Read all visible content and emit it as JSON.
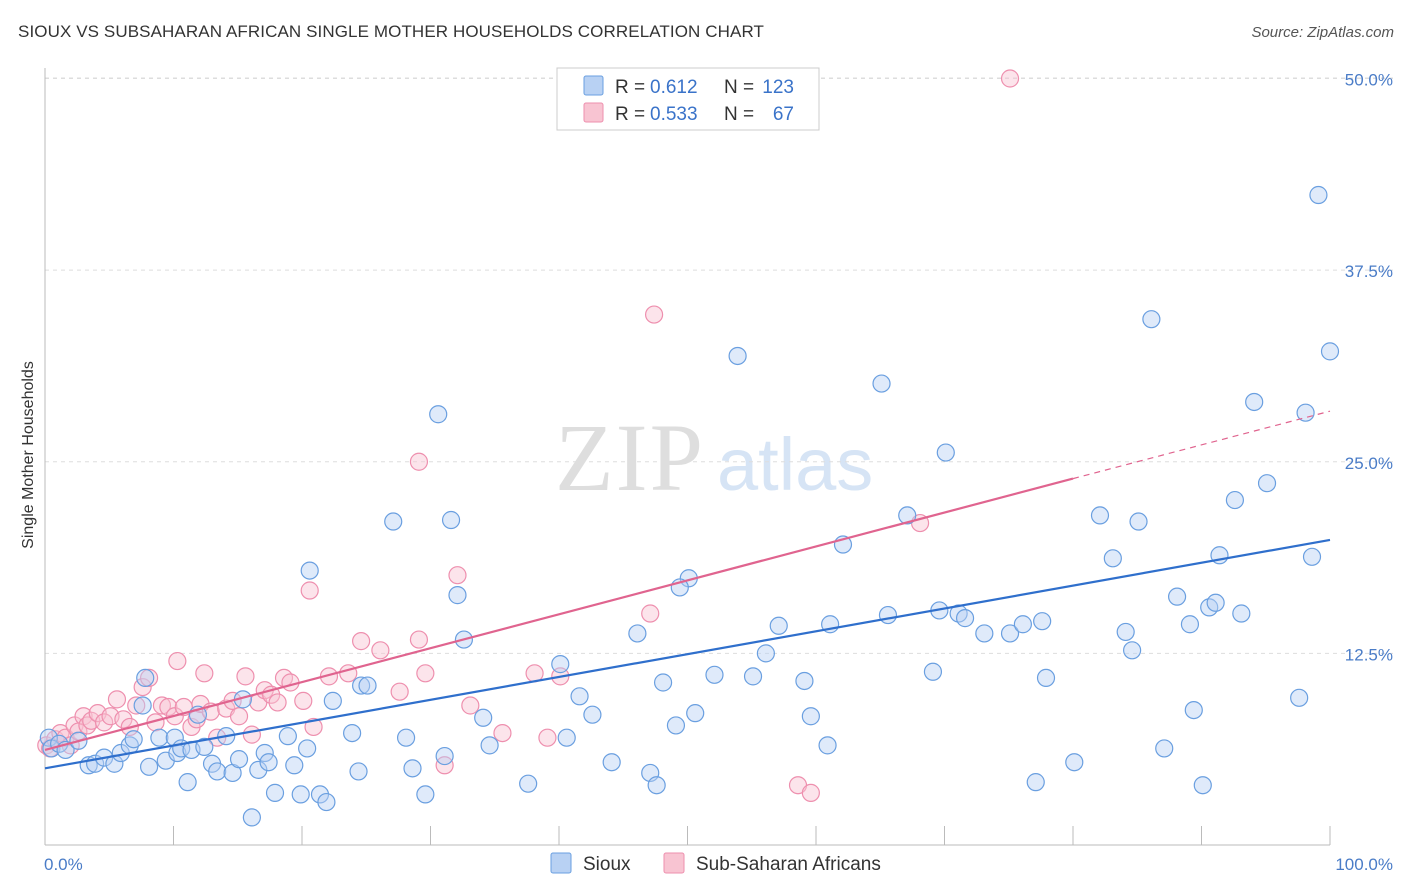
{
  "header": {
    "title": "SIOUX VS SUBSAHARAN AFRICAN SINGLE MOTHER HOUSEHOLDS CORRELATION CHART",
    "source": "Source: ZipAtlas.com"
  },
  "watermark": {
    "zip": "ZIP",
    "atlas": "atlas"
  },
  "colors": {
    "sioux_fill": "#b8d1f3",
    "sioux_stroke": "#6a9fe0",
    "sioux_line": "#2f6fcc",
    "ssa_fill": "#f8c4d2",
    "ssa_stroke": "#ee8fae",
    "ssa_line": "#e0648f",
    "tick_text": "#4a7cc7",
    "grid": "#dddddd"
  },
  "legend": {
    "rows": [
      {
        "r_label": "R =",
        "r_value": "0.612",
        "n_label": "N =",
        "n_value": "123"
      },
      {
        "r_label": "R =",
        "r_value": "0.533",
        "n_label": "N =",
        "n_value": "67"
      }
    ]
  },
  "chart_data": {
    "type": "scatter",
    "title": "SIOUX VS SUBSAHARAN AFRICAN SINGLE MOTHER HOUSEHOLDS CORRELATION CHART",
    "xlabel": "",
    "ylabel": "Single Mother Households",
    "xlim": [
      0,
      100
    ],
    "ylim": [
      0,
      52
    ],
    "x_tick_labels": [
      "0.0%",
      "100.0%"
    ],
    "y_ticks": [
      12.5,
      25.0,
      37.5,
      50.0
    ],
    "y_tick_labels": [
      "12.5%",
      "25.0%",
      "37.5%",
      "50.0%"
    ],
    "grid": "horizontal dashed",
    "legend_position": "top-center",
    "series": [
      {
        "name": "Sioux",
        "r": 0.612,
        "n": 123,
        "trend": {
          "x": [
            0,
            100
          ],
          "y": [
            5.0,
            19.9
          ]
        },
        "points": [
          [
            0.3,
            7.0
          ],
          [
            0.5,
            6.3
          ],
          [
            1.1,
            6.6
          ],
          [
            1.6,
            6.2
          ],
          [
            2.6,
            6.8
          ],
          [
            3.4,
            5.2
          ],
          [
            3.9,
            5.3
          ],
          [
            4.6,
            5.7
          ],
          [
            5.4,
            5.3
          ],
          [
            5.9,
            6.0
          ],
          [
            6.6,
            6.5
          ],
          [
            6.9,
            6.9
          ],
          [
            7.6,
            9.1
          ],
          [
            7.8,
            10.9
          ],
          [
            8.1,
            5.1
          ],
          [
            8.9,
            7.0
          ],
          [
            9.4,
            5.5
          ],
          [
            10.1,
            7.0
          ],
          [
            10.3,
            6.0
          ],
          [
            10.6,
            6.3
          ],
          [
            11.1,
            4.1
          ],
          [
            11.4,
            6.2
          ],
          [
            11.9,
            8.5
          ],
          [
            12.4,
            6.4
          ],
          [
            13.0,
            5.3
          ],
          [
            13.4,
            4.8
          ],
          [
            14.1,
            7.1
          ],
          [
            14.6,
            4.7
          ],
          [
            15.1,
            5.6
          ],
          [
            15.4,
            9.5
          ],
          [
            16.1,
            1.8
          ],
          [
            16.6,
            4.9
          ],
          [
            17.1,
            6.0
          ],
          [
            17.4,
            5.4
          ],
          [
            17.9,
            3.4
          ],
          [
            18.9,
            7.1
          ],
          [
            19.4,
            5.2
          ],
          [
            19.9,
            3.3
          ],
          [
            20.4,
            6.3
          ],
          [
            20.6,
            17.9
          ],
          [
            21.4,
            3.3
          ],
          [
            21.9,
            2.8
          ],
          [
            22.4,
            9.4
          ],
          [
            23.9,
            7.3
          ],
          [
            24.4,
            4.8
          ],
          [
            24.6,
            10.4
          ],
          [
            25.1,
            10.4
          ],
          [
            27.1,
            21.1
          ],
          [
            28.1,
            7.0
          ],
          [
            28.6,
            5.0
          ],
          [
            29.6,
            3.3
          ],
          [
            30.6,
            28.1
          ],
          [
            31.1,
            5.8
          ],
          [
            31.6,
            21.2
          ],
          [
            32.1,
            16.3
          ],
          [
            32.6,
            13.4
          ],
          [
            34.1,
            8.3
          ],
          [
            40.1,
            11.8
          ],
          [
            40.6,
            7.0
          ],
          [
            41.6,
            9.7
          ],
          [
            42.6,
            8.5
          ],
          [
            44.1,
            5.4
          ],
          [
            46.1,
            13.8
          ],
          [
            47.1,
            4.7
          ],
          [
            47.6,
            3.9
          ],
          [
            48.1,
            10.6
          ],
          [
            49.1,
            7.8
          ],
          [
            50.1,
            17.4
          ],
          [
            50.6,
            8.6
          ],
          [
            52.1,
            11.1
          ],
          [
            53.9,
            31.9
          ],
          [
            55.1,
            11.0
          ],
          [
            56.1,
            12.5
          ],
          [
            57.1,
            14.3
          ],
          [
            59.1,
            10.7
          ],
          [
            59.6,
            8.4
          ],
          [
            60.9,
            6.5
          ],
          [
            61.1,
            14.4
          ],
          [
            62.1,
            19.6
          ],
          [
            65.1,
            30.1
          ],
          [
            65.6,
            15.0
          ],
          [
            67.1,
            21.5
          ],
          [
            69.1,
            11.3
          ],
          [
            69.6,
            15.3
          ],
          [
            70.1,
            25.6
          ],
          [
            71.1,
            15.1
          ],
          [
            71.6,
            14.8
          ],
          [
            73.1,
            13.8
          ],
          [
            75.1,
            13.8
          ],
          [
            76.1,
            14.4
          ],
          [
            77.1,
            4.1
          ],
          [
            77.6,
            14.6
          ],
          [
            77.9,
            10.9
          ],
          [
            80.1,
            5.4
          ],
          [
            82.1,
            21.5
          ],
          [
            83.1,
            18.7
          ],
          [
            84.1,
            13.9
          ],
          [
            84.6,
            12.7
          ],
          [
            85.1,
            21.1
          ],
          [
            86.1,
            34.3
          ],
          [
            87.1,
            6.3
          ],
          [
            88.1,
            16.2
          ],
          [
            89.1,
            14.4
          ],
          [
            89.4,
            8.8
          ],
          [
            90.1,
            3.9
          ],
          [
            90.6,
            15.5
          ],
          [
            91.1,
            15.8
          ],
          [
            91.4,
            18.9
          ],
          [
            92.6,
            22.5
          ],
          [
            93.1,
            15.1
          ],
          [
            94.1,
            28.9
          ],
          [
            95.1,
            23.6
          ],
          [
            97.6,
            9.6
          ],
          [
            98.1,
            28.2
          ],
          [
            98.6,
            18.8
          ],
          [
            99.1,
            42.4
          ],
          [
            100.0,
            32.2
          ],
          [
            34.6,
            6.5
          ],
          [
            37.6,
            4.0
          ],
          [
            49.4,
            16.8
          ]
        ]
      },
      {
        "name": "Sub-Saharan Africans",
        "r": 0.533,
        "n": 67,
        "trend": {
          "x": [
            0,
            80
          ],
          "y": [
            6.2,
            23.9
          ],
          "dashed_extension": {
            "x": [
              80,
              100
            ],
            "y": [
              23.9,
              28.3
            ]
          }
        },
        "points": [
          [
            0.1,
            6.5
          ],
          [
            0.4,
            6.3
          ],
          [
            0.8,
            6.9
          ],
          [
            1.2,
            7.3
          ],
          [
            1.6,
            7.0
          ],
          [
            2.0,
            6.5
          ],
          [
            2.3,
            7.8
          ],
          [
            2.6,
            7.4
          ],
          [
            3.0,
            8.4
          ],
          [
            3.3,
            7.8
          ],
          [
            3.6,
            8.1
          ],
          [
            4.1,
            8.6
          ],
          [
            4.6,
            8.0
          ],
          [
            5.1,
            8.4
          ],
          [
            5.6,
            9.5
          ],
          [
            6.1,
            8.2
          ],
          [
            6.6,
            7.7
          ],
          [
            7.1,
            9.1
          ],
          [
            7.6,
            10.3
          ],
          [
            8.1,
            10.9
          ],
          [
            8.6,
            8.0
          ],
          [
            9.1,
            9.1
          ],
          [
            9.6,
            9.0
          ],
          [
            10.1,
            8.4
          ],
          [
            10.3,
            12.0
          ],
          [
            10.8,
            9.0
          ],
          [
            11.4,
            7.7
          ],
          [
            11.8,
            8.2
          ],
          [
            12.1,
            9.2
          ],
          [
            12.4,
            11.2
          ],
          [
            12.9,
            8.7
          ],
          [
            13.4,
            7.0
          ],
          [
            14.1,
            8.9
          ],
          [
            14.6,
            9.4
          ],
          [
            15.1,
            8.4
          ],
          [
            15.6,
            11.0
          ],
          [
            16.1,
            7.2
          ],
          [
            16.6,
            9.3
          ],
          [
            17.1,
            10.1
          ],
          [
            17.6,
            9.8
          ],
          [
            18.1,
            9.3
          ],
          [
            18.6,
            10.9
          ],
          [
            19.1,
            10.6
          ],
          [
            20.1,
            9.4
          ],
          [
            20.6,
            16.6
          ],
          [
            20.9,
            7.7
          ],
          [
            22.1,
            11.0
          ],
          [
            23.6,
            11.2
          ],
          [
            24.6,
            13.3
          ],
          [
            26.1,
            12.7
          ],
          [
            27.6,
            10.0
          ],
          [
            29.1,
            13.4
          ],
          [
            29.6,
            11.2
          ],
          [
            31.1,
            5.2
          ],
          [
            32.1,
            17.6
          ],
          [
            33.1,
            9.1
          ],
          [
            35.6,
            7.3
          ],
          [
            38.1,
            11.2
          ],
          [
            39.1,
            7.0
          ],
          [
            40.1,
            11.0
          ],
          [
            47.1,
            15.1
          ],
          [
            58.6,
            3.9
          ],
          [
            59.6,
            3.4
          ],
          [
            68.1,
            21.0
          ],
          [
            75.1,
            50.0
          ],
          [
            47.4,
            34.6
          ],
          [
            29.1,
            25.0
          ]
        ]
      }
    ]
  },
  "bottom_legend": [
    {
      "label": "Sioux"
    },
    {
      "label": "Sub-Saharan Africans"
    }
  ]
}
